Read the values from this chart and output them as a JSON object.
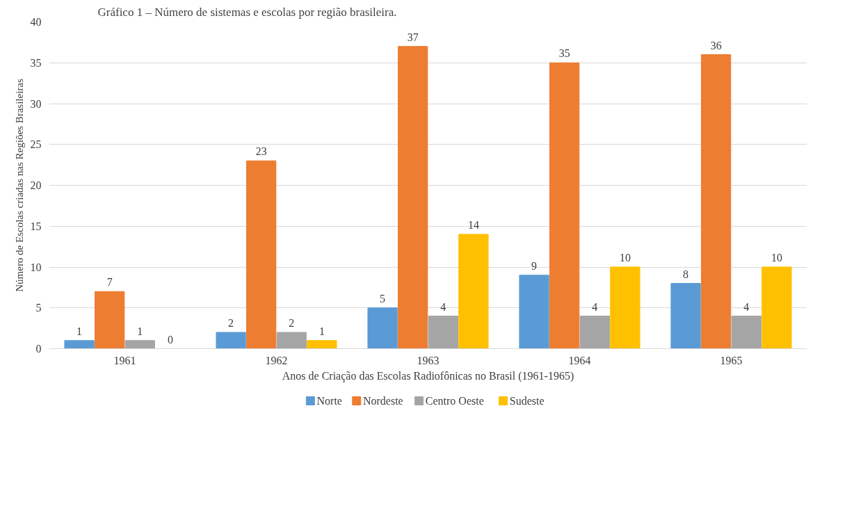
{
  "chart_data": {
    "type": "bar",
    "title": "Gráfico 1 – Número de sistemas e escolas por região brasileira.",
    "xlabel": "Anos de Criação das Escolas Radiofônicas no Brasil (1961-1965)",
    "ylabel": "Número de Escolas criadas nas Regiões Brasileiras",
    "categories": [
      "1961",
      "1962",
      "1963",
      "1964",
      "1965"
    ],
    "series": [
      {
        "name": "Norte",
        "color": "#5b9bd5",
        "values": [
          1,
          2,
          5,
          9,
          8
        ]
      },
      {
        "name": "Nordeste",
        "color": "#ed7d31",
        "values": [
          7,
          23,
          37,
          35,
          36
        ]
      },
      {
        "name": "Centro Oeste",
        "color": "#a5a5a5",
        "values": [
          1,
          2,
          4,
          4,
          4
        ]
      },
      {
        "name": "Sudeste",
        "color": "#ffc000",
        "values": [
          0,
          1,
          14,
          10,
          10
        ]
      }
    ],
    "ylim": [
      0,
      40
    ],
    "yticks": [
      0,
      5,
      10,
      15,
      20,
      25,
      30,
      35,
      40
    ],
    "grid": "y",
    "legend": "bottom",
    "data_labels": true
  }
}
